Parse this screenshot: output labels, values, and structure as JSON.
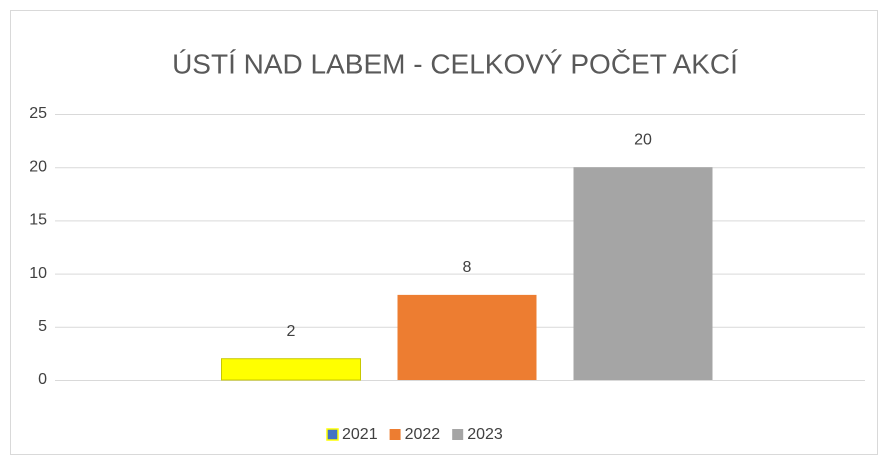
{
  "chart_data": {
    "type": "bar",
    "title": "ÚSTÍ NAD LABEM - CELKOVÝ POČET AKCÍ",
    "series": [
      {
        "name": "2021",
        "color": "#ffff00",
        "border": "#c8c800",
        "legend_color": "#4472c4",
        "values": [
          2
        ]
      },
      {
        "name": "2022",
        "color": "#ed7d31",
        "values": [
          8
        ]
      },
      {
        "name": "2023",
        "color": "#a5a5a5",
        "values": [
          20
        ]
      }
    ],
    "ylim": [
      0,
      25
    ],
    "yticks": [
      0,
      5,
      10,
      15,
      20,
      25
    ],
    "grid": true,
    "legend": "bottom"
  }
}
